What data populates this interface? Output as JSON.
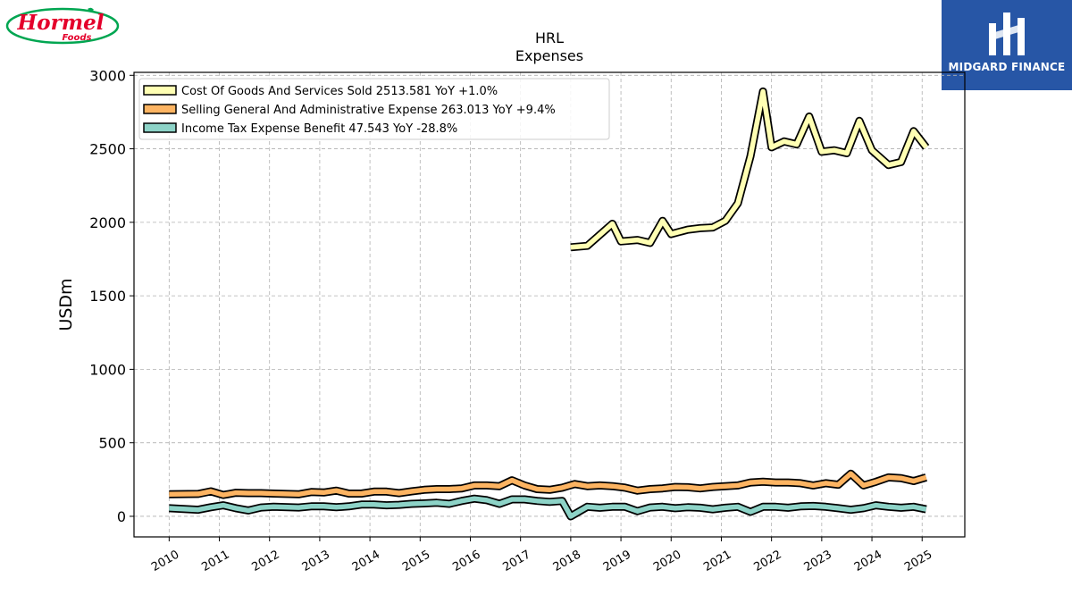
{
  "brand": {
    "company_logo_top": "Hormel",
    "company_logo_bottom": "Foods",
    "publisher": "MIDGARD FINANCE"
  },
  "colors": {
    "cogs": "#ffffb3",
    "sga": "#fdb462",
    "tax": "#8dd3c7",
    "outline": "#000000",
    "grid": "#b0b0b0",
    "logo_red": "#e4002b",
    "logo_green": "#00a651",
    "publisher_bg": "#2756a6"
  },
  "chart_data": {
    "type": "line",
    "title": "HRL",
    "subtitle": "Expenses",
    "xlabel": "",
    "ylabel": "USDm",
    "xlim": [
      2009.3,
      2025.85
    ],
    "ylim": [
      -140,
      3020
    ],
    "y_ticks": [
      0,
      500,
      1000,
      1500,
      2000,
      2500,
      3000
    ],
    "x_ticks": [
      "2010",
      "2011",
      "2012",
      "2013",
      "2014",
      "2015",
      "2016",
      "2017",
      "2018",
      "2019",
      "2020",
      "2021",
      "2022",
      "2023",
      "2024",
      "2025"
    ],
    "grid": true,
    "legend_position": "top-left",
    "series": [
      {
        "name": "Cost Of Goods And Services Sold",
        "legend_label": "Cost Of Goods And Services Sold  2513.581 YoY +1.0%",
        "color_key": "cogs",
        "x": [
          2018.0,
          2018.33,
          2018.83,
          2019.0,
          2019.33,
          2019.58,
          2019.83,
          2020.0,
          2020.33,
          2020.58,
          2020.83,
          2021.08,
          2021.33,
          2021.58,
          2021.83,
          2022.0,
          2022.25,
          2022.5,
          2022.75,
          2023.0,
          2023.25,
          2023.5,
          2023.75,
          2024.0,
          2024.33,
          2024.58,
          2024.83,
          2025.08
        ],
        "y": [
          1830,
          1840,
          1990,
          1870,
          1880,
          1860,
          2010,
          1920,
          1950,
          1960,
          1965,
          2010,
          2130,
          2450,
          2890,
          2510,
          2550,
          2530,
          2720,
          2480,
          2490,
          2470,
          2690,
          2490,
          2390,
          2410,
          2620,
          2510
        ]
      },
      {
        "name": "Selling General And Administrative Expense",
        "legend_label": "Selling General And Administrative Expense  263.013 YoY +9.4%",
        "color_key": "sga",
        "x": [
          2010.0,
          2010.58,
          2010.83,
          2011.08,
          2011.33,
          2011.58,
          2011.83,
          2012.08,
          2012.58,
          2012.83,
          2013.08,
          2013.33,
          2013.58,
          2013.83,
          2014.08,
          2014.33,
          2014.58,
          2014.83,
          2015.08,
          2015.33,
          2015.58,
          2015.83,
          2016.08,
          2016.33,
          2016.58,
          2016.83,
          2017.08,
          2017.33,
          2017.58,
          2017.83,
          2018.08,
          2018.33,
          2018.58,
          2018.83,
          2019.08,
          2019.33,
          2019.58,
          2019.83,
          2020.08,
          2020.33,
          2020.58,
          2020.83,
          2021.08,
          2021.33,
          2021.58,
          2021.83,
          2022.08,
          2022.33,
          2022.58,
          2022.83,
          2023.08,
          2023.33,
          2023.58,
          2023.83,
          2024.08,
          2024.33,
          2024.58,
          2024.83,
          2025.08
        ],
        "y": [
          150,
          152,
          170,
          145,
          160,
          158,
          158,
          155,
          150,
          165,
          162,
          175,
          155,
          155,
          168,
          168,
          158,
          170,
          180,
          185,
          185,
          190,
          210,
          210,
          205,
          245,
          210,
          185,
          180,
          195,
          220,
          205,
          210,
          205,
          195,
          175,
          185,
          190,
          200,
          198,
          190,
          200,
          205,
          210,
          230,
          235,
          230,
          230,
          225,
          210,
          225,
          215,
          290,
          210,
          235,
          265,
          260,
          240,
          265
        ]
      },
      {
        "name": "Income Tax Expense Benefit",
        "legend_label": "Income Tax Expense Benefit  47.543 YoY -28.8%",
        "color_key": "tax",
        "x": [
          2010.0,
          2010.58,
          2010.83,
          2011.08,
          2011.33,
          2011.58,
          2011.83,
          2012.08,
          2012.58,
          2012.83,
          2013.08,
          2013.33,
          2013.58,
          2013.83,
          2014.08,
          2014.33,
          2014.58,
          2014.83,
          2015.08,
          2015.33,
          2015.58,
          2015.83,
          2016.08,
          2016.33,
          2016.58,
          2016.83,
          2017.08,
          2017.33,
          2017.58,
          2017.83,
          2018.0,
          2018.33,
          2018.58,
          2018.83,
          2019.08,
          2019.33,
          2019.58,
          2019.83,
          2020.08,
          2020.33,
          2020.58,
          2020.83,
          2021.08,
          2021.33,
          2021.58,
          2021.83,
          2022.08,
          2022.33,
          2022.58,
          2022.83,
          2023.08,
          2023.33,
          2023.58,
          2023.83,
          2024.08,
          2024.33,
          2024.58,
          2024.83,
          2025.08
        ],
        "y": [
          55,
          45,
          62,
          75,
          55,
          40,
          60,
          65,
          60,
          68,
          68,
          62,
          68,
          80,
          80,
          75,
          78,
          85,
          88,
          92,
          85,
          105,
          120,
          110,
          85,
          115,
          115,
          105,
          98,
          105,
          0,
          65,
          58,
          65,
          65,
          35,
          60,
          65,
          55,
          62,
          58,
          48,
          58,
          65,
          30,
          65,
          65,
          58,
          68,
          70,
          65,
          55,
          45,
          55,
          75,
          65,
          58,
          65,
          48
        ]
      }
    ]
  }
}
